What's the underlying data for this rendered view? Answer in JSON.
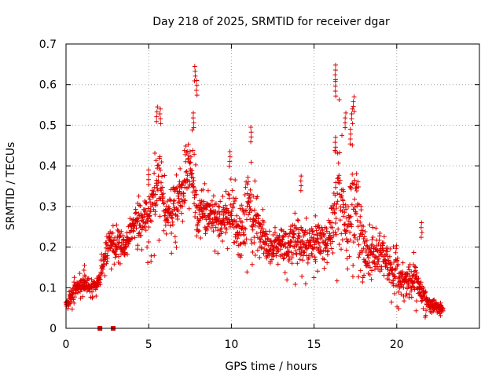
{
  "chart_data": {
    "type": "scatter",
    "title": "Day 218 of 2025, SRMTID for receiver dgar",
    "xlabel": "GPS time / hours",
    "ylabel": "SRMTID / TECUs",
    "xlim": [
      0,
      25
    ],
    "ylim": [
      0,
      0.7
    ],
    "xticks": [
      0,
      5,
      10,
      15,
      20
    ],
    "xtick_labels": [
      "0",
      "5",
      "10",
      "15",
      "20"
    ],
    "yticks": [
      0,
      0.1,
      0.2,
      0.3,
      0.4,
      0.5,
      0.6,
      0.7
    ],
    "ytick_labels": [
      "0",
      "0.1",
      "0.2",
      "0.3",
      "0.4",
      "0.5",
      "0.6",
      "0.7"
    ],
    "grid": true,
    "marker": "plus",
    "colors": {
      "series": "#e00000",
      "grid": "#a0a0a0",
      "axis": "#000000"
    },
    "envelope_note": "approximate binned readout of the dense point cloud",
    "series": [
      {
        "name": "SRMTID",
        "x": [
          0.0,
          0.5,
          1.0,
          1.5,
          2.0,
          2.5,
          3.0,
          3.5,
          4.0,
          4.5,
          5.0,
          5.5,
          6.0,
          6.5,
          7.0,
          7.5,
          8.0,
          8.5,
          9.0,
          9.5,
          10.0,
          10.5,
          11.0,
          11.5,
          12.0,
          12.5,
          13.0,
          13.5,
          14.0,
          14.5,
          15.0,
          15.5,
          16.0,
          16.5,
          17.0,
          17.5,
          18.0,
          18.5,
          19.0,
          19.5,
          20.0,
          20.5,
          21.0,
          21.5,
          22.0,
          22.5,
          22.8
        ],
        "low": [
          0.03,
          0.05,
          0.07,
          0.07,
          0.08,
          0.13,
          0.15,
          0.14,
          0.17,
          0.2,
          0.15,
          0.19,
          0.17,
          0.18,
          0.21,
          0.22,
          0.18,
          0.17,
          0.18,
          0.17,
          0.16,
          0.11,
          0.11,
          0.12,
          0.11,
          0.12,
          0.1,
          0.11,
          0.1,
          0.1,
          0.12,
          0.13,
          0.1,
          0.09,
          0.09,
          0.1,
          0.11,
          0.09,
          0.09,
          0.06,
          0.05,
          0.03,
          0.04,
          0.03,
          0.02,
          0.02,
          0.03
        ],
        "high": [
          0.08,
          0.14,
          0.15,
          0.13,
          0.15,
          0.29,
          0.27,
          0.26,
          0.32,
          0.35,
          0.39,
          0.54,
          0.4,
          0.4,
          0.45,
          0.64,
          0.39,
          0.39,
          0.36,
          0.36,
          0.43,
          0.35,
          0.49,
          0.38,
          0.3,
          0.29,
          0.3,
          0.31,
          0.33,
          0.29,
          0.32,
          0.31,
          0.35,
          0.64,
          0.38,
          0.56,
          0.28,
          0.27,
          0.28,
          0.25,
          0.22,
          0.19,
          0.21,
          0.15,
          0.1,
          0.08,
          0.07
        ],
        "spikes": [
          {
            "x": 5.5,
            "y": 0.545
          },
          {
            "x": 5.7,
            "y": 0.54
          },
          {
            "x": 7.8,
            "y": 0.645
          },
          {
            "x": 7.9,
            "y": 0.61
          },
          {
            "x": 7.7,
            "y": 0.53
          },
          {
            "x": 11.2,
            "y": 0.495
          },
          {
            "x": 16.3,
            "y": 0.648
          },
          {
            "x": 16.3,
            "y": 0.608
          },
          {
            "x": 17.4,
            "y": 0.57
          },
          {
            "x": 17.3,
            "y": 0.54
          },
          {
            "x": 17.2,
            "y": 0.49
          },
          {
            "x": 16.9,
            "y": 0.53
          },
          {
            "x": 16.3,
            "y": 0.47
          },
          {
            "x": 5.0,
            "y": 0.39
          },
          {
            "x": 9.9,
            "y": 0.435
          },
          {
            "x": 14.2,
            "y": 0.375
          },
          {
            "x": 1.1,
            "y": 0.155
          },
          {
            "x": 21.5,
            "y": 0.26
          }
        ],
        "zeros": [
          2.05,
          2.85
        ]
      }
    ]
  }
}
